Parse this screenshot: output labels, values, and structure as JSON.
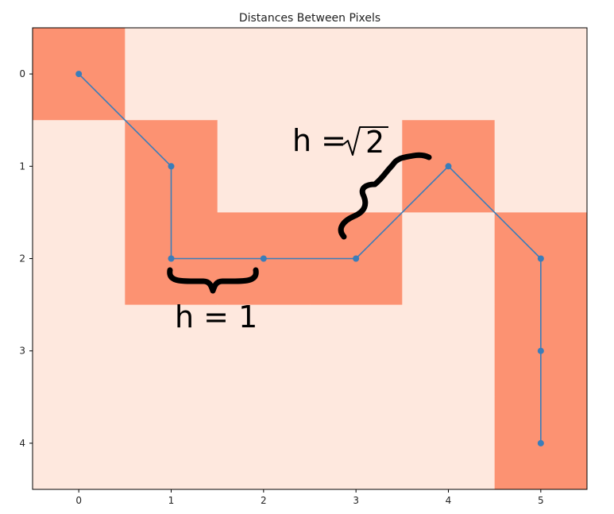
{
  "chart_data": {
    "type": "heatmap",
    "title": "Distances Between Pixels",
    "xlabel": "",
    "ylabel": "",
    "x_ticks": [
      "0",
      "1",
      "2",
      "3",
      "4",
      "5"
    ],
    "y_ticks": [
      "0",
      "1",
      "2",
      "3",
      "4"
    ],
    "xlim": [
      -0.5,
      5.5
    ],
    "ylim": [
      4.5,
      -0.5
    ],
    "grid": false,
    "colors": {
      "active": "#fc9272",
      "background": "#fee8de",
      "path": "#3a7dba",
      "frame": "#000000"
    },
    "cells": [
      [
        1,
        0,
        0,
        0,
        0,
        0
      ],
      [
        0,
        1,
        0,
        0,
        1,
        0
      ],
      [
        0,
        1,
        1,
        1,
        0,
        1
      ],
      [
        0,
        0,
        0,
        0,
        0,
        1
      ],
      [
        0,
        0,
        0,
        0,
        0,
        1
      ]
    ],
    "path": {
      "x": [
        0,
        1,
        1,
        2,
        3,
        4,
        5,
        5,
        5
      ],
      "y": [
        0,
        1,
        2,
        2,
        2,
        1,
        2,
        3,
        4
      ]
    },
    "annotations": [
      {
        "text_left": "h = ",
        "sqrt_arg": "2"
      },
      {
        "text": "h = 1"
      }
    ]
  }
}
